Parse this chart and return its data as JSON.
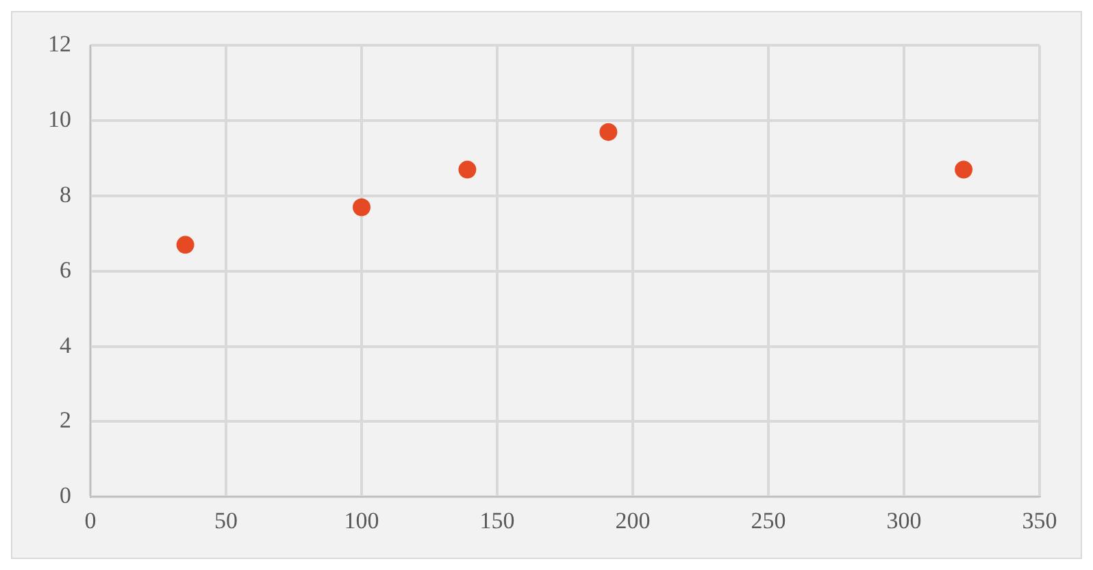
{
  "chart_data": {
    "type": "scatter",
    "x": [
      35,
      100,
      139,
      191,
      322
    ],
    "series": [
      {
        "color": "#e64a24",
        "values": [
          6.7,
          7.7,
          8.7,
          9.7,
          8.7
        ]
      }
    ],
    "xlim": [
      0,
      350
    ],
    "xticks": [
      0,
      50,
      100,
      150,
      200,
      250,
      300,
      350
    ],
    "ylim": [
      0,
      12
    ],
    "yticks": [
      0,
      2,
      4,
      6,
      8,
      10,
      12
    ],
    "grid": true,
    "legend": false,
    "marker": "circle"
  }
}
